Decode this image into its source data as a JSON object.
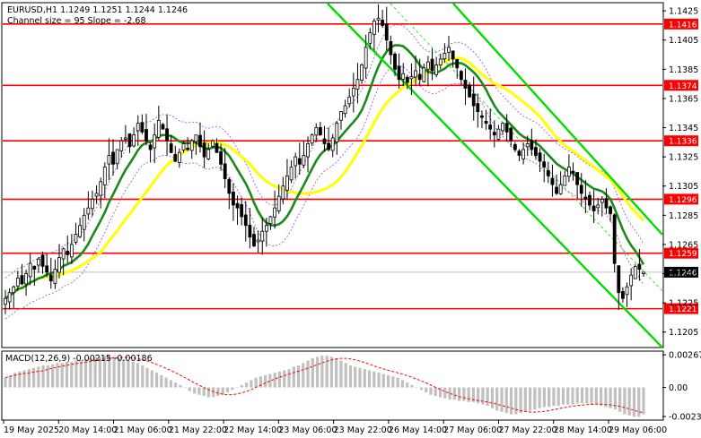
{
  "header": {
    "symbol_line": "EURUSD,H1  1.1249 1.1251 1.1244 1.1246",
    "channel_line": "Channel size = 95 Slope = -2.68"
  },
  "colors": {
    "candle": "#000000",
    "level_line": "#ff0000",
    "level_tag": "#ff0000",
    "price_tag": "#000000",
    "ma_fast": "#1a8a1a",
    "ma_slow": "#ffff00",
    "channel": "#00dd00",
    "envelope": "#aa44cc",
    "macd_hist": "#c0c0c0",
    "macd_signal": "#ff0000"
  },
  "chart_data": [
    {
      "type": "candlestick",
      "symbol": "EURUSD",
      "timeframe": "H1",
      "ohlc_last": {
        "open": 1.1249,
        "high": 1.1251,
        "low": 1.1244,
        "close": 1.1246
      },
      "current_price_label": "1.1246",
      "ylim": [
        1.1195,
        1.143
      ],
      "y_ticks": [
        "1.1425",
        "1.1405",
        "1.1385",
        "1.1365",
        "1.1345",
        "1.1325",
        "1.1305",
        "1.1285",
        "1.1265",
        "1.1245",
        "1.1225",
        "1.1205"
      ],
      "x_ticks": [
        "19 May 2025",
        "20 May 14:00",
        "21 May 06:00",
        "21 May 22:00",
        "22 May 14:00",
        "23 May 06:00",
        "23 May 22:00",
        "26 May 14:00",
        "27 May 06:00",
        "27 May 22:00",
        "28 May 14:00",
        "29 May 06:00"
      ],
      "levels": [
        {
          "label": "1.1416",
          "value": 1.1416
        },
        {
          "label": "1.1374",
          "value": 1.1374
        },
        {
          "label": "1.1336",
          "value": 1.1336
        },
        {
          "label": "1.1296",
          "value": 1.1296
        },
        {
          "label": "1.1259",
          "value": 1.1259
        },
        {
          "label": "1.1221",
          "value": 1.1221
        }
      ],
      "close_path": [
        1.1228,
        1.1232,
        1.1236,
        1.1242,
        1.1238,
        1.1245,
        1.1252,
        1.1248,
        1.1255,
        1.125,
        1.1246,
        1.124,
        1.1248,
        1.1256,
        1.1262,
        1.1258,
        1.1265,
        1.1272,
        1.1278,
        1.1285,
        1.129,
        1.1296,
        1.13,
        1.1308,
        1.1318,
        1.1326,
        1.132,
        1.133,
        1.1336,
        1.1338,
        1.1332,
        1.134,
        1.1348,
        1.1342,
        1.1336,
        1.133,
        1.134,
        1.135,
        1.1344,
        1.1336,
        1.1328,
        1.1322,
        1.1328,
        1.1334,
        1.133,
        1.1336,
        1.134,
        1.1332,
        1.1325,
        1.133,
        1.1336,
        1.1328,
        1.132,
        1.131,
        1.13,
        1.1292,
        1.129,
        1.1284,
        1.1278,
        1.127,
        1.1264,
        1.1268,
        1.1274,
        1.1278,
        1.1284,
        1.129,
        1.1298,
        1.1305,
        1.1312,
        1.1318,
        1.1325,
        1.132,
        1.1326,
        1.1334,
        1.134,
        1.1345,
        1.134,
        1.1334,
        1.133,
        1.1338,
        1.1348,
        1.1356,
        1.136,
        1.1366,
        1.1372,
        1.1378,
        1.1388,
        1.14,
        1.141,
        1.1418,
        1.142,
        1.1415,
        1.1405,
        1.1395,
        1.1385,
        1.1378,
        1.1382,
        1.1376,
        1.138,
        1.1384,
        1.1378,
        1.1386,
        1.139,
        1.1384,
        1.1388,
        1.1392,
        1.1396,
        1.14,
        1.1392,
        1.1386,
        1.1378,
        1.1372,
        1.1366,
        1.136,
        1.1356,
        1.1352,
        1.1348,
        1.1344,
        1.134,
        1.1344,
        1.1348,
        1.1342,
        1.1336,
        1.133,
        1.1326,
        1.133,
        1.1334,
        1.133,
        1.1326,
        1.1322,
        1.1318,
        1.1312,
        1.1306,
        1.13,
        1.1306,
        1.1312,
        1.1318,
        1.1314,
        1.1306,
        1.13,
        1.1296,
        1.1292,
        1.1288,
        1.1292,
        1.1296,
        1.129,
        1.1286,
        1.1252,
        1.1232,
        1.1228,
        1.1236,
        1.1244,
        1.125,
        1.1248,
        1.1246
      ]
    },
    {
      "type": "histogram",
      "indicator": "MACD",
      "title": "MACD(12,26,9) -0.00215 -0.00186",
      "ylim": [
        -0.0026,
        0.0029
      ],
      "y_ticks": [
        "0.00267",
        "0.00",
        "-0.00238"
      ],
      "hist_path": [
        0.0008,
        0.001,
        0.0012,
        0.0013,
        0.0014,
        0.0015,
        0.0016,
        0.0017,
        0.0018,
        0.0018,
        0.0019,
        0.002,
        0.002,
        0.0021,
        0.0021,
        0.0022,
        0.0022,
        0.0023,
        0.0024,
        0.0025,
        0.0025,
        0.0026,
        0.0026,
        0.0025,
        0.0024,
        0.0023,
        0.0022,
        0.0021,
        0.002,
        0.0018,
        0.0016,
        0.0014,
        0.0012,
        0.001,
        0.0008,
        0.0006,
        0.0004,
        0.0002,
        0.0,
        -0.0003,
        -0.0005,
        -0.0006,
        -0.0007,
        -0.0008,
        -0.0008,
        -0.0007,
        -0.0006,
        -0.0004,
        -0.0002,
        0.0,
        0.0002,
        0.0004,
        0.0006,
        0.0008,
        0.0009,
        0.001,
        0.0011,
        0.0012,
        0.0013,
        0.0014,
        0.0015,
        0.0017,
        0.0018,
        0.002,
        0.0022,
        0.0024,
        0.0025,
        0.0026,
        0.0026,
        0.0025,
        0.0024,
        0.0022,
        0.002,
        0.0018,
        0.0017,
        0.0016,
        0.0015,
        0.0014,
        0.0013,
        0.0012,
        0.0011,
        0.001,
        0.0009,
        0.0008,
        0.0006,
        0.0004,
        0.0002,
        0.0,
        -0.0002,
        -0.0004,
        -0.0006,
        -0.0007,
        -0.0008,
        -0.0009,
        -0.001,
        -0.001,
        -0.0011,
        -0.0011,
        -0.0012,
        -0.0012,
        -0.0013,
        -0.0014,
        -0.0015,
        -0.0017,
        -0.0019,
        -0.002,
        -0.0021,
        -0.0022,
        -0.0022,
        -0.0021,
        -0.002,
        -0.0019,
        -0.0018,
        -0.0017,
        -0.0016,
        -0.0016,
        -0.0015,
        -0.0015,
        -0.0014,
        -0.0014,
        -0.0014,
        -0.0013,
        -0.0013,
        -0.0013,
        -0.0014,
        -0.0014,
        -0.0015,
        -0.0016,
        -0.0017,
        -0.0018,
        -0.002,
        -0.0022,
        -0.0023,
        -0.0024,
        -0.0024,
        -0.0022
      ]
    }
  ]
}
